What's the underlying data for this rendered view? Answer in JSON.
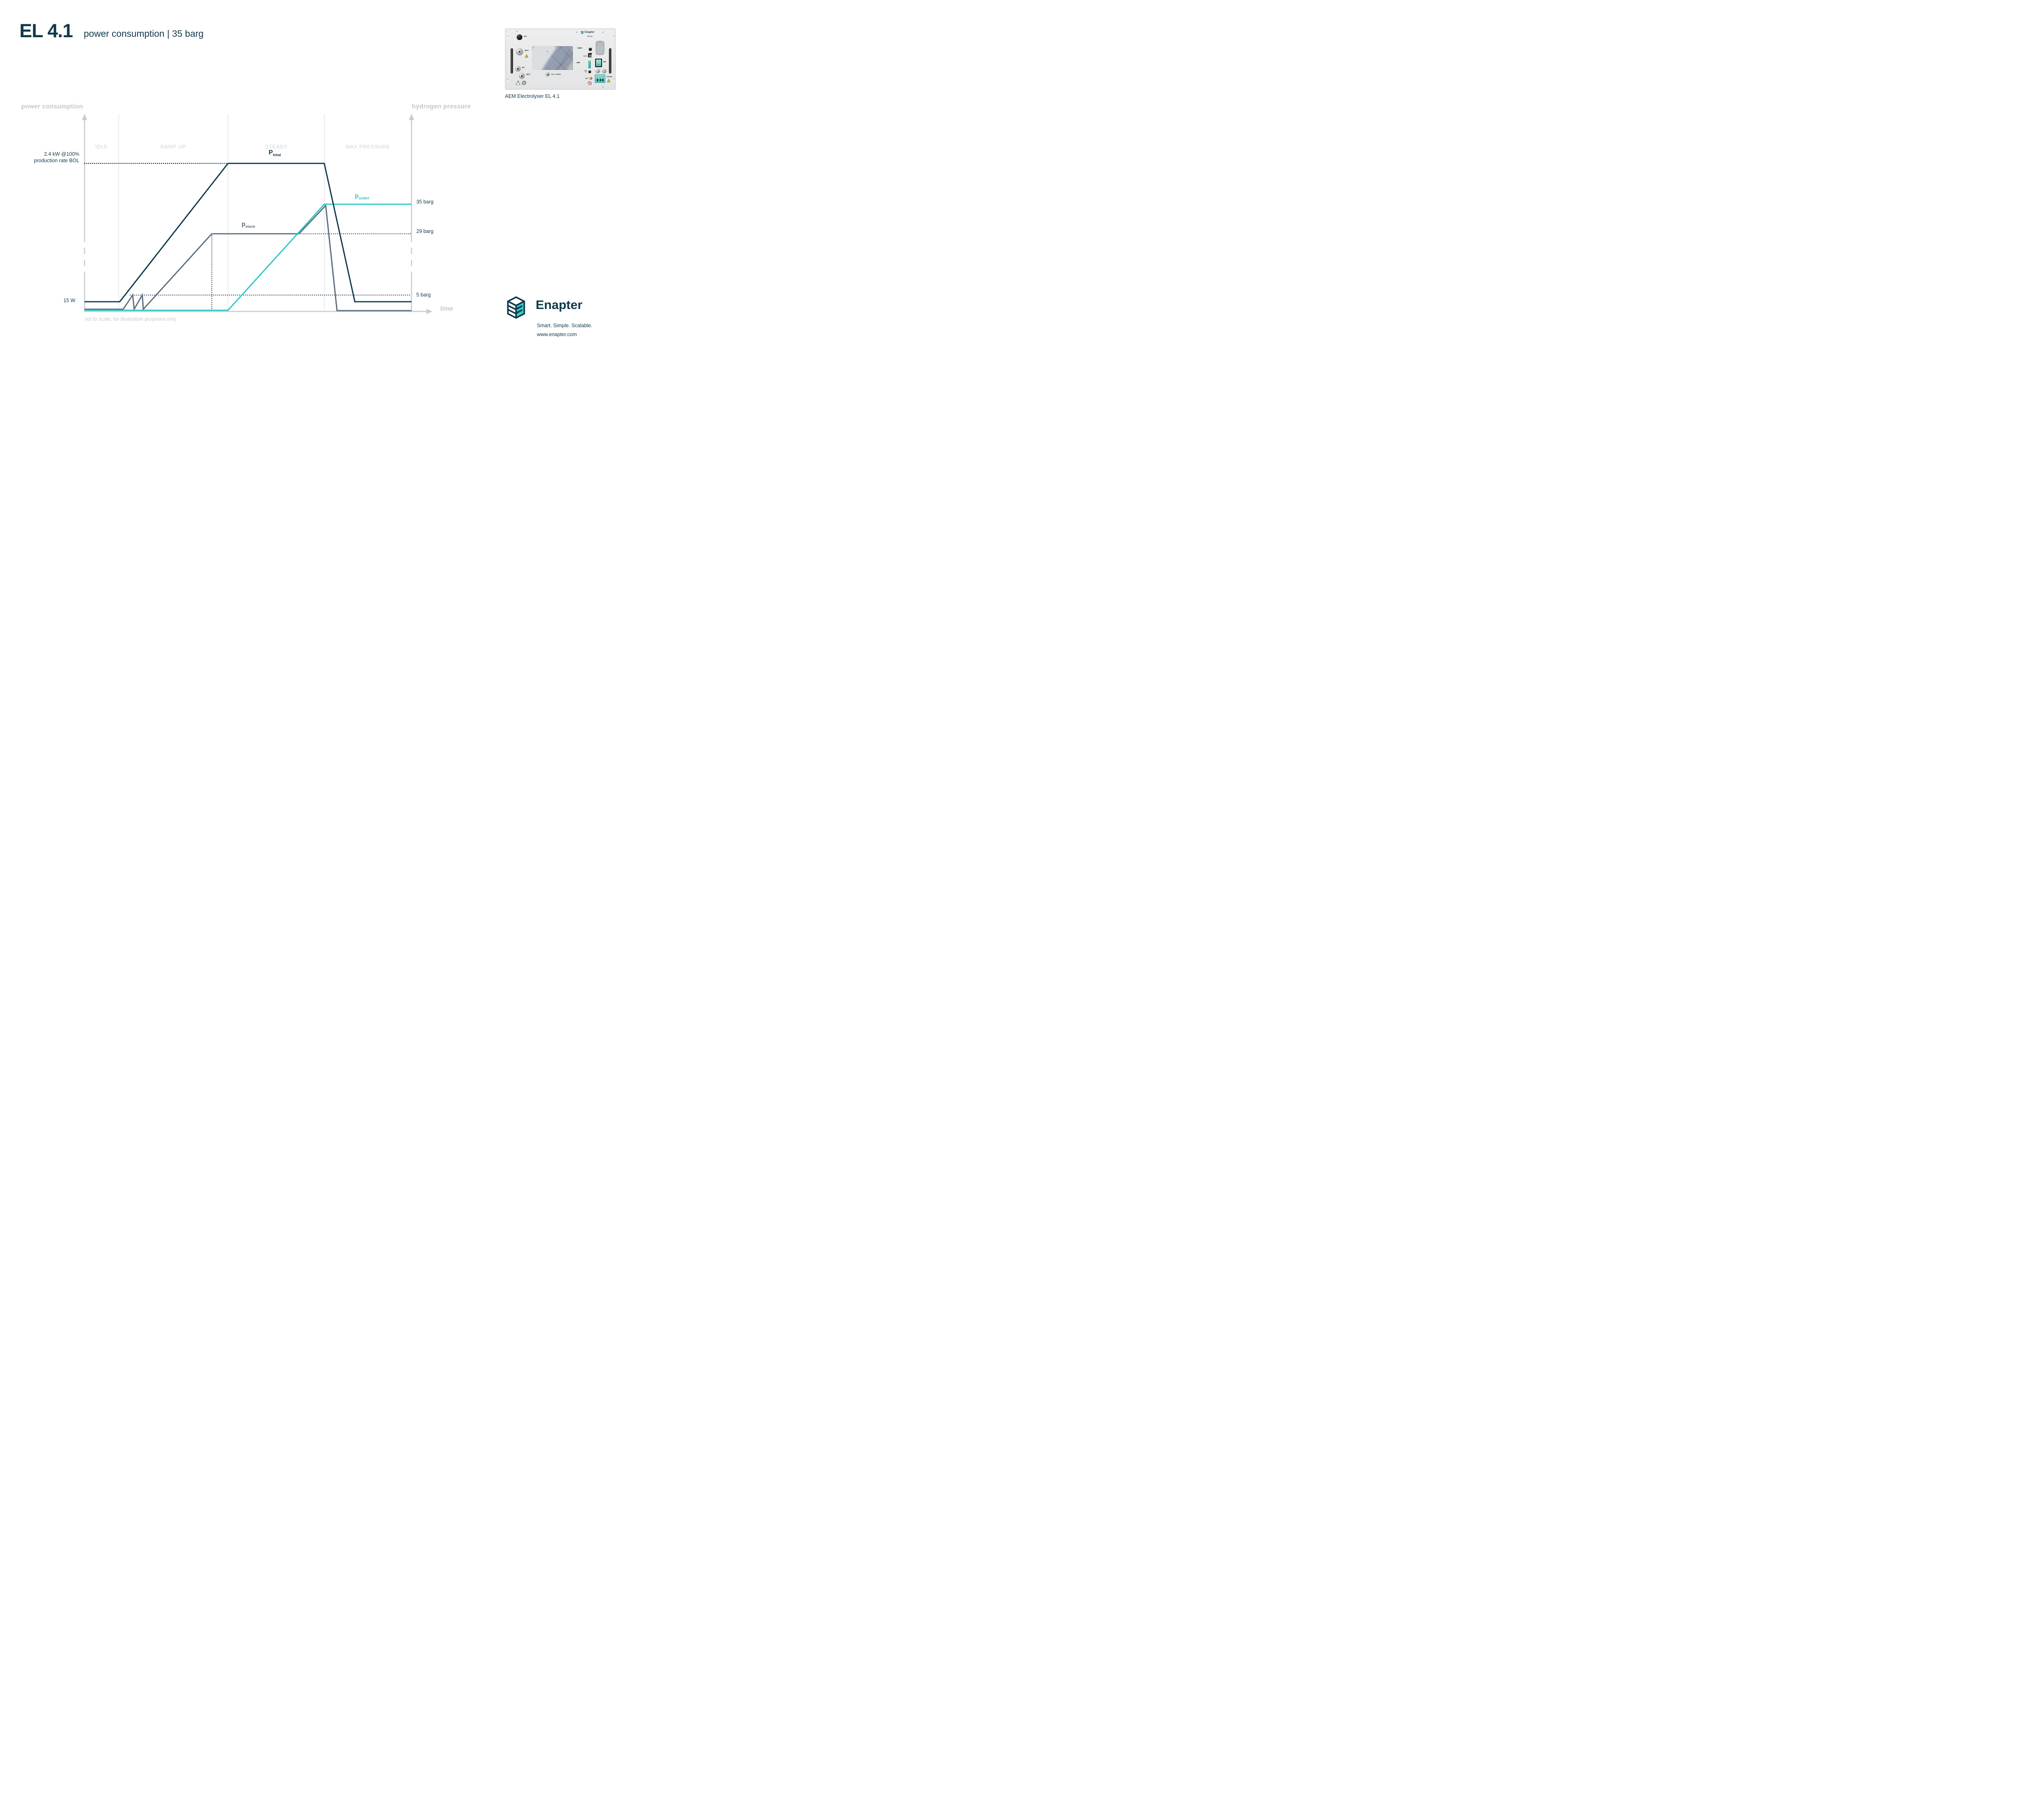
{
  "header": {
    "title": "EL 4.1",
    "subtitle": "power consumption | 35 barg"
  },
  "colors": {
    "navy": "#11394b",
    "slate": "#5d6e80",
    "teal": "#2cc8c6",
    "logo_teal": "#35cdc9",
    "axis": "#c9cdd2",
    "divider": "#dcdee0",
    "axis_title": "#c3c7ca",
    "phase_label": "#d0d2d4",
    "note": "#c9c9c9"
  },
  "chart": {
    "left_axis_title": "power consumption",
    "right_axis_title": "hydrogen pressure",
    "time_label": "time",
    "note": "not to scale, for illustration purposes only",
    "phases": [
      "IDLE",
      "RAMP UP",
      "STEADY",
      "MAX PRESSURE"
    ],
    "annotations": {
      "power_max_1": "2.4 kW @100%",
      "power_max_2": "production rate BOL",
      "idle_power": "15 W",
      "outlet_pressure": "35 barg",
      "stack_pressure": "29 barg",
      "min_pressure": "5 barg"
    },
    "series_labels": {
      "total": {
        "main": "P",
        "sub": "total"
      },
      "stack": {
        "main": "p",
        "sub": "stack"
      },
      "outlet": {
        "main": "p",
        "sub": "outlet"
      }
    }
  },
  "chart_data": {
    "type": "line",
    "title": "EL 4.1 power consumption | 35 barg",
    "x": {
      "label": "time",
      "phases": [
        "IDLE",
        "RAMP UP",
        "STEADY",
        "MAX PRESSURE"
      ],
      "note": "not to scale, for illustration purposes only"
    },
    "y_left": {
      "label": "power consumption",
      "references": [
        "2.4 kW @100% production rate BOL",
        "15 W"
      ]
    },
    "y_right": {
      "label": "hydrogen pressure",
      "references": [
        "35 barg",
        "29 barg",
        "5 barg"
      ]
    },
    "legend_position": "inline-labels",
    "grid": false,
    "series": [
      {
        "id": "P_total",
        "label": "P total",
        "axis": "left",
        "color": "#11394b",
        "description": "15 W during IDLE; linear ramp to 2.4 kW across RAMP UP; constant 2.4 kW through STEADY; falls back to 15 W during MAX PRESSURE and stays at 15 W",
        "points": [
          [
            "IDLE start",
            "15 W"
          ],
          [
            "RAMP UP start",
            "15 W"
          ],
          [
            "STEADY start",
            "2.4 kW"
          ],
          [
            "MAX PRESSURE start",
            "2.4 kW"
          ],
          [
            "mid MAX PRESSURE",
            "15 W"
          ],
          [
            "end",
            "15 W"
          ]
        ]
      },
      {
        "id": "p_stack",
        "label": "p stack",
        "axis": "right",
        "color": "#5d6e80",
        "description": "0 barg during IDLE; two sawtooth restart spikes to ~5 barg, then ramps to 29 barg plateau; holds 29 barg through STEADY until outlet pressure catches up, then rises with it to 35 barg; vents rapidly to 0 barg in MAX PRESSURE phase",
        "points": [
          [
            "IDLE",
            "0 barg"
          ],
          [
            "early RAMP UP",
            "spikes 0→5→0 barg twice"
          ],
          [
            "late RAMP UP",
            "29 barg"
          ],
          [
            "STEADY",
            "29 barg"
          ],
          [
            "late STEADY",
            "rises 29→35 barg"
          ],
          [
            "MAX PRESSURE start",
            "35 barg"
          ],
          [
            "MAX PRESSURE",
            "0 barg"
          ],
          [
            "end",
            "0 barg"
          ]
        ]
      },
      {
        "id": "p_outlet",
        "label": "p outlet",
        "axis": "right",
        "color": "#2cc8c6",
        "description": "0 barg through IDLE and RAMP UP; rises linearly during STEADY to 35 barg; holds 35 barg through MAX PRESSURE",
        "points": [
          [
            "IDLE start",
            "0 barg"
          ],
          [
            "STEADY start",
            "0 barg"
          ],
          [
            "MAX PRESSURE start",
            "35 barg"
          ],
          [
            "end",
            "35 barg"
          ]
        ]
      }
    ],
    "draw": {
      "dividers_fx": [
        0.1046,
        0.4387,
        0.7333
      ],
      "axis_segments_fy": [
        [
          0.0287,
          0.6475
        ],
        [
          0.6762,
          0.709
        ],
        [
          0.7377,
          0.7705
        ],
        [
          0.7992,
          1
        ]
      ],
      "guides": [
        {
          "color": "#11394b",
          "pts": [
            [
              0,
              0.25
            ],
            [
              0.4387,
              0.25
            ]
          ]
        },
        {
          "color": "#5d6e80",
          "pts": [
            [
              0.6559,
              0.6066
            ],
            [
              1,
              0.6066
            ]
          ]
        },
        {
          "color": "#5d6e80",
          "pts": [
            [
              0.1399,
              0.9172
            ],
            [
              1,
              0.9172
            ]
          ]
        },
        {
          "color": "#5d6e80",
          "pts": [
            [
              0.3892,
              0.6066
            ],
            [
              0.3892,
              0.9959
            ]
          ]
        }
      ],
      "polylines": [
        {
          "id": "p_stack",
          "color": "#5d6e80",
          "pts": [
            [
              0,
              0.9887
            ],
            [
              0.1182,
              0.9887
            ],
            [
              0.1473,
              0.9168
            ],
            [
              0.1516,
              0.9887
            ],
            [
              0.1766,
              0.9168
            ],
            [
              0.1797,
              0.9887
            ],
            [
              0.3892,
              0.6066
            ],
            [
              0.6559,
              0.6066
            ],
            [
              0.7376,
              0.4631
            ],
            [
              0.7723,
              0.9959
            ],
            [
              1,
              0.9959
            ]
          ]
        },
        {
          "id": "p_outlet",
          "color": "#2cc8c6",
          "pts": [
            [
              0,
              0.9943
            ],
            [
              0.4387,
              0.9943
            ],
            [
              0.7333,
              0.457
            ],
            [
              1,
              0.457
            ]
          ]
        },
        {
          "id": "P_total",
          "color": "#11394b",
          "pts": [
            [
              0,
              0.9508
            ],
            [
              0.1077,
              0.9508
            ],
            [
              0.4387,
              0.25
            ],
            [
              0.7333,
              0.25
            ],
            [
              0.8267,
              0.9508
            ],
            [
              1,
              0.9508
            ]
          ]
        }
      ]
    }
  },
  "product": {
    "caption": "AEM Electrolyser EL 4.1",
    "brand": "Enapter",
    "model": "EL 4.1",
    "labels": {
      "h2o_in": [
        "H₂O",
        "IN"
      ],
      "o2_vent": [
        "O₂",
        "VENT"
      ],
      "h2_out": [
        "H₂",
        "OUT"
      ],
      "h2_vent": [
        "H₂",
        "VENT"
      ],
      "fill_drain": "FILL / DRAIN",
      "start_stop": [
        "START",
        "STOP"
      ],
      "eth": "ETH.",
      "dry_con": [
        "DRY",
        "CON."
      ],
      "on": "ON",
      "off": "OFF",
      "rocker": [
        "I",
        "O"
      ],
      "ant": "ANT.",
      "power": "POWER"
    }
  },
  "footer": {
    "brand": "Enapter",
    "tagline": "Smart. Simple. Scalable.",
    "url": "www.enapter.com"
  }
}
